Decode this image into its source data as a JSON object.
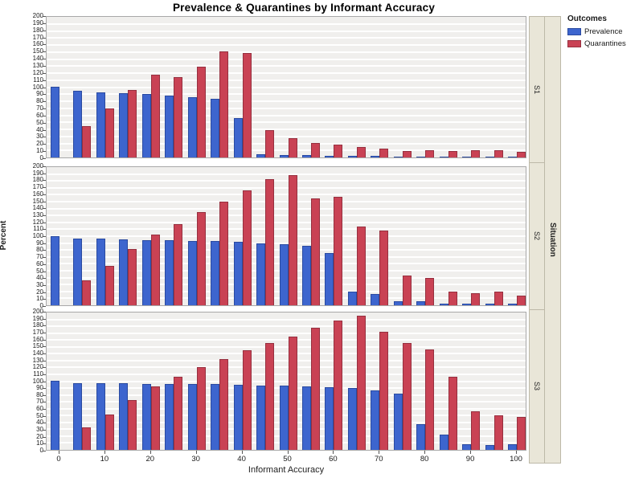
{
  "title": "Prevalence & Quarantines by Informant Accuracy",
  "legend": {
    "title": "Outcomes",
    "items": [
      {
        "label": "Prevalence",
        "color": "#3d65ce"
      },
      {
        "label": "Quarantines",
        "color": "#c94254"
      }
    ]
  },
  "strip_label": "Situation",
  "chart_data": {
    "type": "bar",
    "title": "Prevalence & Quarantines by Informant Accuracy",
    "xlabel": "Informant Accuracy",
    "ylabel": "Percent",
    "ylim": [
      0,
      200
    ],
    "ytick_step": 10,
    "x_tick_labels": [
      "0",
      "10",
      "20",
      "30",
      "40",
      "50",
      "60",
      "70",
      "80",
      "90",
      "100"
    ],
    "grid": true,
    "legend_position": "right",
    "categories": [
      0,
      5,
      10,
      15,
      20,
      25,
      30,
      35,
      40,
      45,
      50,
      55,
      60,
      65,
      70,
      75,
      80,
      85,
      90,
      95,
      100
    ],
    "colors": {
      "prevalence": "#3d65ce",
      "quarantines": "#c94254"
    },
    "panels": [
      {
        "label": "S1",
        "series": [
          {
            "name": "Prevalence",
            "values": [
              100,
              95,
              93,
              91,
              90,
              88,
              86,
              83,
              56,
              5,
              3,
              3,
              2,
              2,
              2,
              1,
              1,
              1,
              1,
              1,
              1
            ]
          },
          {
            "name": "Quarantines",
            "values": [
              0,
              45,
              70,
              96,
              118,
              114,
              129,
              151,
              148,
              39,
              27,
              20,
              18,
              15,
              13,
              9,
              10,
              9,
              10,
              10,
              8
            ]
          }
        ]
      },
      {
        "label": "S2",
        "series": [
          {
            "name": "Prevalence",
            "values": [
              100,
              96,
              96,
              95,
              94,
              94,
              93,
              93,
              92,
              90,
              88,
              86,
              76,
              20,
              16,
              6,
              6,
              2,
              2,
              2,
              2
            ]
          },
          {
            "name": "Quarantines",
            "values": [
              0,
              36,
              57,
              81,
              102,
              118,
              135,
              150,
              166,
              183,
              188,
              155,
              157,
              114,
              108,
              43,
              39,
              20,
              18,
              20,
              14
            ]
          }
        ]
      },
      {
        "label": "S3",
        "series": [
          {
            "name": "Prevalence",
            "values": [
              100,
              97,
              97,
              97,
              96,
              96,
              96,
              96,
              95,
              93,
              93,
              92,
              91,
              90,
              86,
              82,
              38,
              22,
              8,
              7,
              8
            ]
          },
          {
            "name": "Quarantines",
            "values": [
              0,
              33,
              51,
              73,
              92,
              107,
              121,
              132,
              145,
              155,
              165,
              178,
              188,
              195,
              172,
              155,
              146,
              107,
              56,
              50,
              48
            ]
          }
        ]
      }
    ]
  }
}
